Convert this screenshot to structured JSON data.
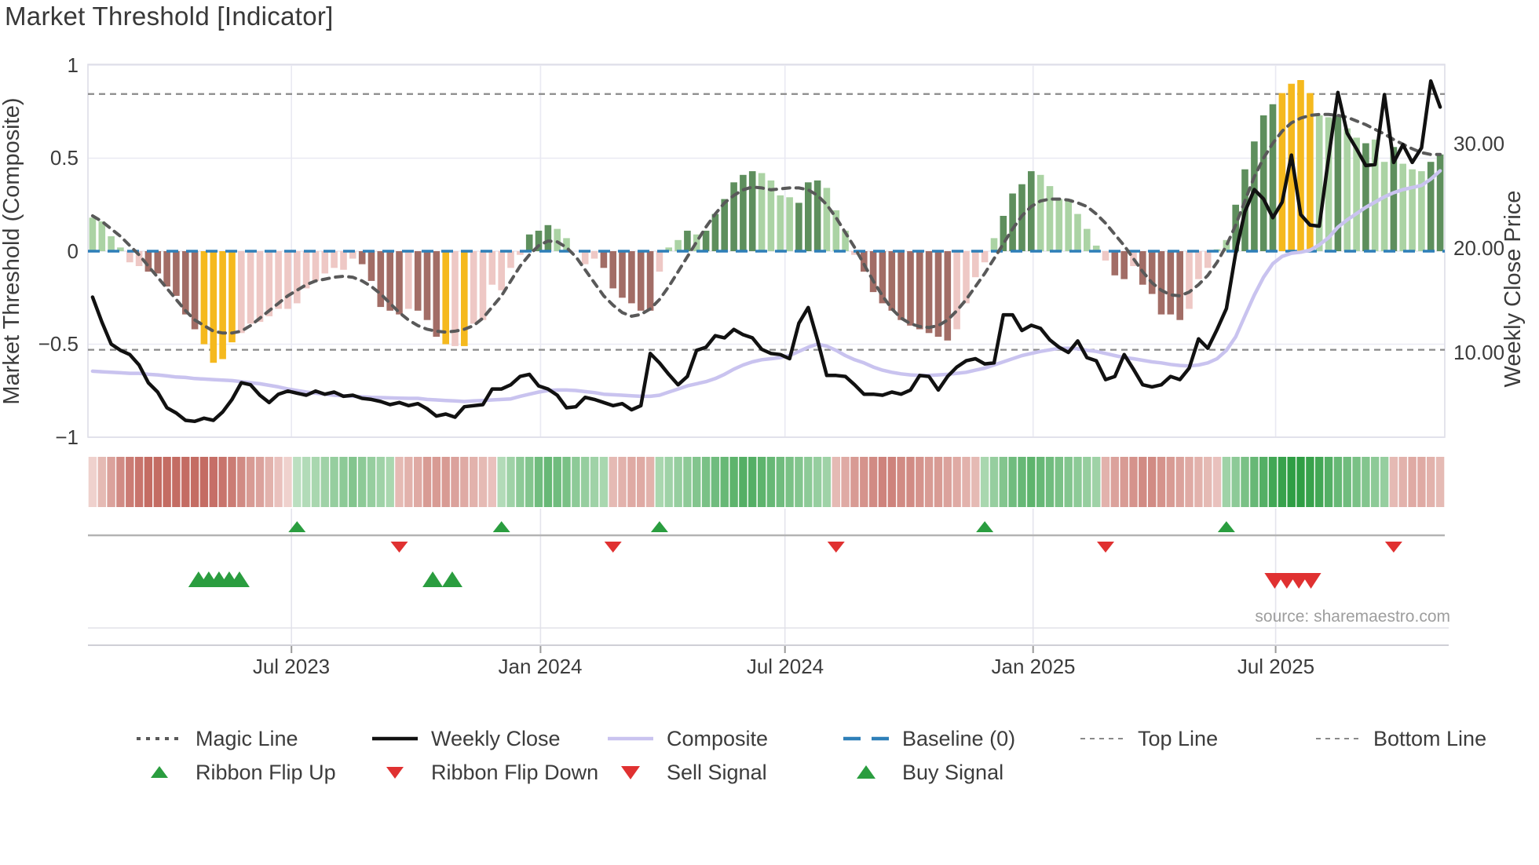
{
  "title": "Market Threshold [Indicator]",
  "source_note": "source: sharemaestro.com",
  "axes": {
    "left_title": "Market Threshold (Composite)",
    "right_title": "Weekly Close Price",
    "left_ticks": [
      "1",
      "0.5",
      "0",
      "−0.5",
      "−1"
    ],
    "left_tick_values": [
      1,
      0.5,
      0,
      -0.5,
      -1
    ],
    "right_ticks": [
      "30.00",
      "20.00",
      "10.00"
    ],
    "right_tick_values": [
      30,
      20,
      10
    ],
    "x_ticks": [
      "Jul 2023",
      "Jan 2024",
      "Jul 2024",
      "Jan 2025",
      "Jul 2025"
    ],
    "x_tick_weeks": [
      21.4,
      48.2,
      74.5,
      101.2,
      127.3
    ]
  },
  "colors": {
    "bar_dark_green": "#5e8f5d",
    "bar_light_green": "#abd3a4",
    "bar_dark_red": "#a26d66",
    "bar_light_red": "#eec8c5",
    "bar_yellow": "#f5b91e",
    "weekly_close": "#111111",
    "composite": "#c9c3ef",
    "magic": "#595959",
    "baseline": "#2e7fb8",
    "guide": "#8a8a8a",
    "ribbon_green_dark": "#2f9e44",
    "ribbon_green_light": "#eaf5e9",
    "ribbon_red_dark": "#b74d43",
    "ribbon_red_light": "#f8e5e2",
    "signal_green": "#2a9d3f",
    "signal_red": "#e03131",
    "grid": "#e9e9f2",
    "panel_line": "#b3b3b3",
    "axis_line": "#cfcfd6",
    "text": "#3c3c3c",
    "muted": "#9e9e9e"
  },
  "legend": {
    "row1": [
      {
        "label": "Magic Line",
        "swatch": "magic-dotted-gray"
      },
      {
        "label": "Weekly Close",
        "swatch": "solid-black"
      },
      {
        "label": "Composite",
        "swatch": "solid-lavender"
      },
      {
        "label": "Baseline (0)",
        "swatch": "dashed-blue"
      },
      {
        "label": "Top Line",
        "swatch": "dashed-gray"
      },
      {
        "label": "Bottom Line",
        "swatch": "dashed-gray"
      }
    ],
    "row2": [
      {
        "label": "Ribbon Flip Up",
        "swatch": "triangle-up-green"
      },
      {
        "label": "Ribbon Flip Down",
        "swatch": "triangle-down-red"
      },
      {
        "label": "Sell Signal",
        "swatch": "triangle-down-red"
      },
      {
        "label": "Buy Signal",
        "swatch": "triangle-up-green"
      }
    ]
  },
  "chart_data": {
    "type": "combo",
    "n_weeks": 146,
    "ylim_left": [
      -1,
      1
    ],
    "guides": {
      "baseline": 0,
      "top_line": 0.845,
      "bottom_line": -0.53
    },
    "threshold_histogram": {
      "values": [
        0.18,
        0.16,
        0.08,
        0.02,
        -0.06,
        -0.08,
        -0.11,
        -0.12,
        -0.19,
        -0.24,
        -0.34,
        -0.42,
        -0.5,
        -0.6,
        -0.58,
        -0.49,
        -0.44,
        -0.39,
        -0.38,
        -0.35,
        -0.31,
        -0.31,
        -0.28,
        -0.2,
        -0.16,
        -0.12,
        -0.09,
        -0.1,
        -0.04,
        -0.07,
        -0.16,
        -0.3,
        -0.32,
        -0.34,
        -0.31,
        -0.32,
        -0.37,
        -0.46,
        -0.5,
        -0.51,
        -0.51,
        -0.39,
        -0.37,
        -0.18,
        -0.21,
        -0.09,
        -0.02,
        0.09,
        0.11,
        0.14,
        0.12,
        0.07,
        0,
        -0.07,
        -0.04,
        -0.09,
        -0.2,
        -0.25,
        -0.28,
        -0.32,
        -0.32,
        -0.11,
        0.02,
        0.06,
        0.11,
        0.09,
        0.11,
        0.2,
        0.28,
        0.37,
        0.41,
        0.43,
        0.42,
        0.38,
        0.3,
        0.29,
        0.26,
        0.37,
        0.38,
        0.34,
        0.22,
        0.11,
        -0.02,
        -0.11,
        -0.22,
        -0.28,
        -0.32,
        -0.37,
        -0.4,
        -0.42,
        -0.44,
        -0.46,
        -0.48,
        -0.42,
        -0.28,
        -0.14,
        -0.06,
        0.07,
        0.19,
        0.31,
        0.36,
        0.43,
        0.41,
        0.35,
        0.28,
        0.28,
        0.2,
        0.12,
        0.03,
        -0.05,
        -0.13,
        -0.15,
        -0.08,
        -0.18,
        -0.23,
        -0.34,
        -0.34,
        -0.37,
        -0.31,
        -0.15,
        -0.09,
        0.01,
        0.06,
        0.25,
        0.44,
        0.59,
        0.73,
        0.79,
        0.85,
        0.9,
        0.92,
        0.85,
        0.73,
        0.72,
        0.73,
        0.66,
        0.61,
        0.58,
        0.6,
        0.48,
        0.56,
        0.47,
        0.44,
        0.43,
        0.48,
        0.52
      ],
      "palette": [
        "lg",
        "lg",
        "lg",
        "lg",
        "lr",
        "lr",
        "dr",
        "dr",
        "dr",
        "dr",
        "dr",
        "dr",
        "y",
        "y",
        "y",
        "y",
        "lr",
        "lr",
        "lr",
        "lr",
        "lr",
        "lr",
        "lr",
        "lr",
        "lr",
        "lr",
        "lr",
        "lr",
        "lr",
        "dr",
        "dr",
        "dr",
        "dr",
        "dr",
        "lr",
        "dr",
        "dr",
        "dr",
        "y",
        "lr",
        "y",
        "lr",
        "lr",
        "lr",
        "lr",
        "lr",
        "lr",
        "dg",
        "dg",
        "dg",
        "lg",
        "lg",
        "lg",
        "lr",
        "lr",
        "dr",
        "dr",
        "dr",
        "dr",
        "dr",
        "dr",
        "lr",
        "lg",
        "lg",
        "dg",
        "lg",
        "dg",
        "dg",
        "dg",
        "dg",
        "dg",
        "dg",
        "lg",
        "lg",
        "lg",
        "lg",
        "dg",
        "dg",
        "dg",
        "lg",
        "lg",
        "lg",
        "lr",
        "dr",
        "dr",
        "dr",
        "dr",
        "dr",
        "dr",
        "dr",
        "dr",
        "dr",
        "dr",
        "lr",
        "lr",
        "lr",
        "lr",
        "lg",
        "dg",
        "dg",
        "dg",
        "dg",
        "lg",
        "lg",
        "lg",
        "lg",
        "lg",
        "lg",
        "lg",
        "lr",
        "dr",
        "dr",
        "lr",
        "dr",
        "dr",
        "dr",
        "dr",
        "dr",
        "lr",
        "lr",
        "lr",
        "lg",
        "lg",
        "dg",
        "dg",
        "dg",
        "dg",
        "dg",
        "y",
        "y",
        "y",
        "y",
        "lg",
        "lg",
        "dg",
        "lg",
        "lg",
        "dg",
        "lg",
        "lg",
        "dg",
        "lg",
        "lg",
        "lg",
        "dg",
        "dg"
      ]
    },
    "weekly_close": [
      15.3,
      12.9,
      10.8,
      10.2,
      9.8,
      8.8,
      7.1,
      6.2,
      4.7,
      4.2,
      3.5,
      3.4,
      3.7,
      3.5,
      4.3,
      5.5,
      7.1,
      6.9,
      5.9,
      5.2,
      6.0,
      6.3,
      6.1,
      5.9,
      6.3,
      6.0,
      6.2,
      5.8,
      5.9,
      5.6,
      5.5,
      5.3,
      5.0,
      5.2,
      4.9,
      5.1,
      4.6,
      3.9,
      4.1,
      3.8,
      4.8,
      4.9,
      5.0,
      6.5,
      6.5,
      6.9,
      7.7,
      7.9,
      6.8,
      6.5,
      5.9,
      4.7,
      4.8,
      5.7,
      5.5,
      5.2,
      4.9,
      5.1,
      4.5,
      4.9,
      9.9,
      9.0,
      7.9,
      6.9,
      7.7,
      10.2,
      10.5,
      11.6,
      11.4,
      12.2,
      11.7,
      11.4,
      10.3,
      9.9,
      9.8,
      9.4,
      12.8,
      14.3,
      11.2,
      7.8,
      7.8,
      7.7,
      6.9,
      6.0,
      6.0,
      5.9,
      6.2,
      6.0,
      6.4,
      7.8,
      7.7,
      6.4,
      7.7,
      8.6,
      9.2,
      9.4,
      8.9,
      9.0,
      13.6,
      13.6,
      12.1,
      12.6,
      12.3,
      11.2,
      10.5,
      10.0,
      11.1,
      9.5,
      9.2,
      7.4,
      7.7,
      9.8,
      8.4,
      6.9,
      6.7,
      6.9,
      7.7,
      7.4,
      8.5,
      11.3,
      10.4,
      12.2,
      14.2,
      19.5,
      23.5,
      25.6,
      24.7,
      22.9,
      24.4,
      28.9,
      23.2,
      22.2,
      22.1,
      28.7,
      34.9,
      31.0,
      29.5,
      27.9,
      28.0,
      34.7,
      28.2,
      29.9,
      28.2,
      29.6,
      36.0,
      33.5
    ],
    "composite": [
      8.2,
      8.15,
      8.1,
      8.05,
      8.0,
      8.0,
      7.9,
      7.85,
      7.75,
      7.65,
      7.6,
      7.5,
      7.45,
      7.4,
      7.35,
      7.3,
      7.2,
      7.1,
      7.0,
      6.85,
      6.7,
      6.5,
      6.35,
      6.2,
      6.1,
      6.0,
      5.9,
      5.85,
      5.8,
      5.75,
      5.7,
      5.68,
      5.65,
      5.62,
      5.6,
      5.6,
      5.5,
      5.45,
      5.4,
      5.35,
      5.3,
      5.35,
      5.4,
      5.45,
      5.5,
      5.55,
      5.8,
      6.0,
      6.2,
      6.35,
      6.4,
      6.4,
      6.35,
      6.25,
      6.15,
      6.0,
      5.95,
      5.9,
      5.85,
      5.8,
      5.8,
      5.9,
      6.2,
      6.5,
      6.8,
      7.0,
      7.2,
      7.5,
      7.9,
      8.4,
      8.8,
      9.1,
      9.3,
      9.4,
      9.5,
      9.7,
      10.1,
      10.5,
      10.8,
      10.6,
      10.2,
      9.7,
      9.3,
      9.0,
      8.6,
      8.3,
      8.1,
      7.95,
      7.85,
      7.8,
      7.8,
      7.85,
      7.9,
      8.0,
      8.1,
      8.3,
      8.5,
      8.8,
      9.1,
      9.4,
      9.7,
      9.9,
      10.1,
      10.25,
      10.4,
      10.4,
      10.35,
      10.2,
      10.1,
      9.9,
      9.7,
      9.5,
      9.4,
      9.25,
      9.1,
      9.0,
      8.85,
      8.75,
      8.7,
      8.8,
      9.0,
      9.4,
      10.2,
      11.5,
      13.5,
      15.5,
      17.2,
      18.5,
      19.2,
      19.5,
      19.6,
      19.8,
      20.3,
      21.0,
      22.0,
      22.7,
      23.3,
      23.9,
      24.4,
      24.9,
      25.3,
      25.6,
      25.8,
      26.0,
      26.6,
      27.4
    ],
    "magic_line": [
      0.19,
      0.16,
      0.12,
      0.08,
      0.03,
      -0.02,
      -0.08,
      -0.14,
      -0.2,
      -0.26,
      -0.32,
      -0.37,
      -0.4,
      -0.43,
      -0.44,
      -0.44,
      -0.43,
      -0.4,
      -0.36,
      -0.32,
      -0.28,
      -0.24,
      -0.21,
      -0.18,
      -0.16,
      -0.15,
      -0.14,
      -0.135,
      -0.14,
      -0.16,
      -0.19,
      -0.23,
      -0.28,
      -0.33,
      -0.37,
      -0.4,
      -0.42,
      -0.43,
      -0.435,
      -0.43,
      -0.42,
      -0.4,
      -0.36,
      -0.3,
      -0.24,
      -0.16,
      -0.08,
      -0.02,
      0.03,
      0.055,
      0.05,
      0.02,
      -0.03,
      -0.1,
      -0.17,
      -0.24,
      -0.29,
      -0.33,
      -0.35,
      -0.34,
      -0.31,
      -0.26,
      -0.19,
      -0.11,
      -0.03,
      0.05,
      0.13,
      0.2,
      0.26,
      0.3,
      0.33,
      0.345,
      0.34,
      0.33,
      0.335,
      0.34,
      0.34,
      0.33,
      0.3,
      0.25,
      0.18,
      0.1,
      0.02,
      -0.07,
      -0.16,
      -0.24,
      -0.31,
      -0.36,
      -0.39,
      -0.405,
      -0.41,
      -0.4,
      -0.37,
      -0.32,
      -0.26,
      -0.19,
      -0.12,
      -0.04,
      0.04,
      0.12,
      0.19,
      0.24,
      0.27,
      0.28,
      0.28,
      0.275,
      0.26,
      0.24,
      0.2,
      0.15,
      0.09,
      0.03,
      -0.04,
      -0.11,
      -0.17,
      -0.21,
      -0.235,
      -0.24,
      -0.22,
      -0.18,
      -0.13,
      -0.06,
      0.03,
      0.14,
      0.27,
      0.4,
      0.5,
      0.58,
      0.645,
      0.69,
      0.715,
      0.73,
      0.735,
      0.735,
      0.73,
      0.72,
      0.7,
      0.68,
      0.655,
      0.63,
      0.6,
      0.575,
      0.55,
      0.53,
      0.52,
      0.52
    ],
    "ribbon": [
      -0.15,
      -0.3,
      -0.45,
      -0.6,
      -0.7,
      -0.75,
      -0.8,
      -0.8,
      -0.8,
      -0.8,
      -0.8,
      -0.8,
      -0.8,
      -0.78,
      -0.75,
      -0.7,
      -0.6,
      -0.5,
      -0.45,
      -0.35,
      -0.25,
      -0.15,
      0.25,
      0.3,
      0.35,
      0.4,
      0.45,
      0.5,
      0.55,
      0.5,
      0.45,
      0.4,
      0.35,
      -0.3,
      -0.35,
      -0.4,
      -0.5,
      -0.5,
      -0.5,
      -0.45,
      -0.4,
      -0.35,
      -0.3,
      -0.25,
      0.3,
      0.4,
      0.5,
      0.55,
      0.65,
      0.7,
      0.65,
      0.6,
      0.5,
      0.45,
      0.4,
      0.35,
      -0.3,
      -0.35,
      -0.4,
      -0.4,
      -0.35,
      0.35,
      0.4,
      0.45,
      0.5,
      0.55,
      0.6,
      0.65,
      0.7,
      0.75,
      0.8,
      0.8,
      0.75,
      0.7,
      0.65,
      0.6,
      0.55,
      0.5,
      0.45,
      0.4,
      -0.3,
      -0.4,
      -0.5,
      -0.55,
      -0.6,
      -0.65,
      -0.65,
      -0.6,
      -0.6,
      -0.55,
      -0.5,
      -0.5,
      -0.45,
      -0.4,
      -0.35,
      -0.3,
      0.35,
      0.45,
      0.55,
      0.65,
      0.7,
      0.75,
      0.7,
      0.65,
      0.6,
      0.55,
      0.5,
      0.45,
      0.4,
      -0.35,
      -0.45,
      -0.5,
      -0.55,
      -0.6,
      -0.6,
      -0.55,
      -0.5,
      -0.45,
      -0.4,
      -0.35,
      -0.3,
      -0.25,
      0.4,
      0.5,
      0.6,
      0.7,
      0.8,
      0.9,
      0.95,
      1.0,
      1.0,
      0.95,
      0.9,
      0.8,
      0.7,
      0.65,
      0.6,
      0.55,
      0.5,
      0.45,
      -0.3,
      -0.35,
      -0.4,
      -0.4,
      -0.35,
      -0.3
    ],
    "signals": {
      "ribbon_flip_up_weeks": [
        22,
        44,
        61,
        96,
        122
      ],
      "ribbon_flip_down_weeks": [
        33,
        56,
        80,
        109,
        140
      ],
      "buy_weeks": [
        11.4,
        12.5,
        13.6,
        14.7,
        15.8,
        36.6,
        38.7
      ],
      "sell_weeks": [
        127.2,
        128.5,
        129.8,
        131.1
      ]
    }
  }
}
